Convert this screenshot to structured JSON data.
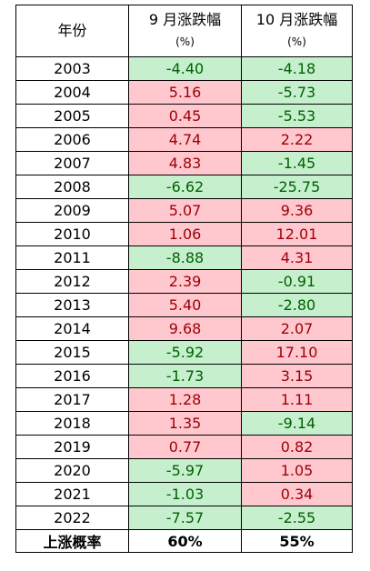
{
  "header": {
    "year": "年份",
    "sep_label": "9 月涨跌幅",
    "oct_label": "10 月涨跌幅",
    "unit": "(%)"
  },
  "rows": [
    {
      "year": "2003",
      "sep": "-4.40",
      "oct": "-4.18"
    },
    {
      "year": "2004",
      "sep": "5.16",
      "oct": "-5.73"
    },
    {
      "year": "2005",
      "sep": "0.45",
      "oct": "-5.53"
    },
    {
      "year": "2006",
      "sep": "4.74",
      "oct": "2.22"
    },
    {
      "year": "2007",
      "sep": "4.83",
      "oct": "-1.45"
    },
    {
      "year": "2008",
      "sep": "-6.62",
      "oct": "-25.75"
    },
    {
      "year": "2009",
      "sep": "5.07",
      "oct": "9.36"
    },
    {
      "year": "2010",
      "sep": "1.06",
      "oct": "12.01"
    },
    {
      "year": "2011",
      "sep": "-8.88",
      "oct": "4.31"
    },
    {
      "year": "2012",
      "sep": "2.39",
      "oct": "-0.91"
    },
    {
      "year": "2013",
      "sep": "5.40",
      "oct": "-2.80"
    },
    {
      "year": "2014",
      "sep": "9.68",
      "oct": "2.07"
    },
    {
      "year": "2015",
      "sep": "-5.92",
      "oct": "17.10"
    },
    {
      "year": "2016",
      "sep": "-1.73",
      "oct": "3.15"
    },
    {
      "year": "2017",
      "sep": "1.28",
      "oct": "1.11"
    },
    {
      "year": "2018",
      "sep": "1.35",
      "oct": "-9.14"
    },
    {
      "year": "2019",
      "sep": "0.77",
      "oct": "0.82"
    },
    {
      "year": "2020",
      "sep": "-5.97",
      "oct": "1.05"
    },
    {
      "year": "2021",
      "sep": "-1.03",
      "oct": "0.34"
    },
    {
      "year": "2022",
      "sep": "-7.57",
      "oct": "-2.55"
    }
  ],
  "footer": {
    "label": "上涨概率",
    "sep": "60%",
    "oct": "55%"
  },
  "colors": {
    "up_fill": "#ffc7ce",
    "up_text": "#9c0006",
    "down_fill": "#c6efce",
    "down_text": "#006100"
  }
}
